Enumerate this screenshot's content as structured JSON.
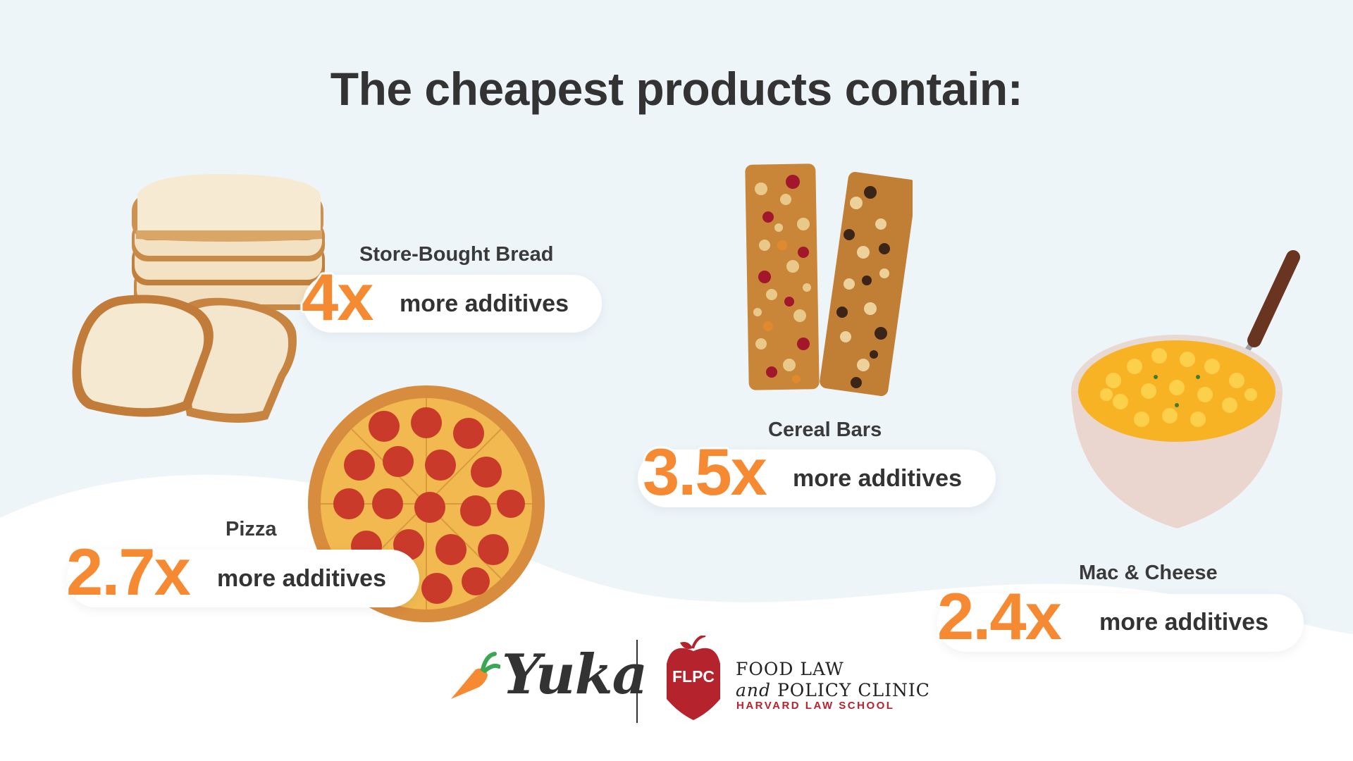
{
  "title": "The cheapest products contain:",
  "items": [
    {
      "name": "Store-Bought Bread",
      "multiplier": "4x",
      "suffix": "more additives",
      "image": "bread-slices"
    },
    {
      "name": "Cereal Bars",
      "multiplier": "3.5x",
      "suffix": "more additives",
      "image": "granola-bars"
    },
    {
      "name": "Pizza",
      "multiplier": "2.7x",
      "suffix": "more additives",
      "image": "pepperoni-pizza"
    },
    {
      "name": "Mac & Cheese",
      "multiplier": "2.4x",
      "suffix": "more additives",
      "image": "mac-and-cheese-bowl"
    }
  ],
  "footer": {
    "yuka_logo": "Yuka",
    "flpc_badge": "FLPC",
    "flpc_line1": "FOOD LAW",
    "flpc_and": "and",
    "flpc_line2": "POLICY CLINIC",
    "flpc_line3": "HARVARD LAW SCHOOL"
  },
  "colors": {
    "accent": "#f58a32",
    "text": "#333333",
    "background_top": "#eef5f9",
    "background_bottom": "#ffffff",
    "harvard_red": "#b5232d"
  }
}
